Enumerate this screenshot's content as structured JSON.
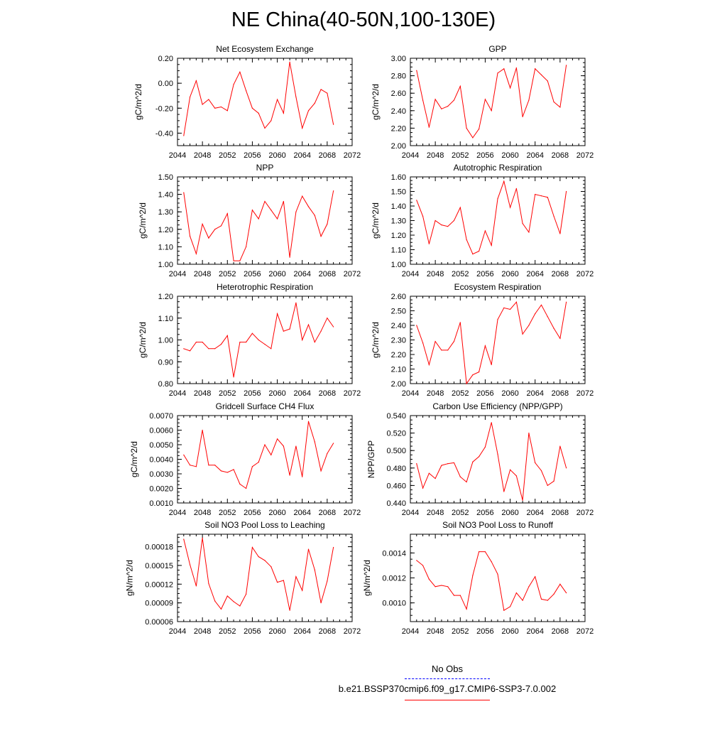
{
  "page_title": "NE China(40-50N,100-130E)",
  "legend": {
    "entries": [
      {
        "label": "No Obs",
        "color": "#0000ff",
        "style": "dashed"
      },
      {
        "label": "b.e21.BSSP370cmip6.f09_g17.CMIP6-SSP3-7.0.002",
        "color": "#ff0000",
        "style": "solid"
      }
    ]
  },
  "chart_data": [
    {
      "type": "line",
      "title": "Net Ecosystem Exchange",
      "ylabel": "gC/m^2/d",
      "xlim": [
        2044,
        2072
      ],
      "xticks": [
        "2044",
        "2048",
        "2052",
        "2056",
        "2060",
        "2064",
        "2068",
        "2072"
      ],
      "ylim": [
        -0.5,
        0.2
      ],
      "yticks": [
        "-0.40",
        "-0.20",
        "0.00",
        "0.20"
      ],
      "series": [
        {
          "color": "#ff0000",
          "x": [
            2045,
            2046,
            2047,
            2048,
            2049,
            2050,
            2051,
            2052,
            2053,
            2054,
            2055,
            2056,
            2057,
            2058,
            2059,
            2060,
            2061,
            2062,
            2063,
            2064,
            2065,
            2066,
            2067,
            2068,
            2069
          ],
          "values": [
            -0.42,
            -0.11,
            0.02,
            -0.17,
            -0.13,
            -0.2,
            -0.19,
            -0.22,
            -0.01,
            0.09,
            -0.06,
            -0.2,
            -0.24,
            -0.36,
            -0.3,
            -0.13,
            -0.24,
            0.17,
            -0.11,
            -0.36,
            -0.22,
            -0.16,
            -0.05,
            -0.08,
            -0.33
          ]
        }
      ]
    },
    {
      "type": "line",
      "title": "GPP",
      "ylabel": "gC/m^2/d",
      "xlim": [
        2044,
        2072
      ],
      "xticks": [
        "2044",
        "2048",
        "2052",
        "2056",
        "2060",
        "2064",
        "2068",
        "2072"
      ],
      "ylim": [
        2.0,
        3.0
      ],
      "yticks": [
        "2.00",
        "2.20",
        "2.40",
        "2.60",
        "2.80",
        "3.00"
      ],
      "series": [
        {
          "color": "#ff0000",
          "x": [
            2045,
            2046,
            2047,
            2048,
            2049,
            2050,
            2051,
            2052,
            2053,
            2054,
            2055,
            2056,
            2057,
            2058,
            2059,
            2060,
            2061,
            2062,
            2063,
            2064,
            2065,
            2066,
            2067,
            2068,
            2069
          ],
          "values": [
            2.86,
            2.52,
            2.21,
            2.53,
            2.42,
            2.45,
            2.52,
            2.68,
            2.2,
            2.09,
            2.19,
            2.53,
            2.4,
            2.83,
            2.88,
            2.66,
            2.89,
            2.33,
            2.52,
            2.88,
            2.81,
            2.74,
            2.5,
            2.44,
            2.92
          ]
        }
      ]
    },
    {
      "type": "line",
      "title": "NPP",
      "ylabel": "gC/m^2/d",
      "xlim": [
        2044,
        2072
      ],
      "xticks": [
        "2044",
        "2048",
        "2052",
        "2056",
        "2060",
        "2064",
        "2068",
        "2072"
      ],
      "ylim": [
        1.0,
        1.5
      ],
      "yticks": [
        "1.00",
        "1.10",
        "1.20",
        "1.30",
        "1.40",
        "1.50"
      ],
      "series": [
        {
          "color": "#ff0000",
          "x": [
            2045,
            2046,
            2047,
            2048,
            2049,
            2050,
            2051,
            2052,
            2053,
            2054,
            2055,
            2056,
            2057,
            2058,
            2059,
            2060,
            2061,
            2062,
            2063,
            2064,
            2065,
            2066,
            2067,
            2068,
            2069
          ],
          "values": [
            1.41,
            1.16,
            1.06,
            1.23,
            1.15,
            1.2,
            1.22,
            1.29,
            1.02,
            1.02,
            1.1,
            1.31,
            1.26,
            1.36,
            1.31,
            1.26,
            1.36,
            1.04,
            1.3,
            1.39,
            1.33,
            1.28,
            1.16,
            1.23,
            1.42
          ]
        }
      ]
    },
    {
      "type": "line",
      "title": "Autotrophic Respiration",
      "ylabel": "gC/m^2/d",
      "xlim": [
        2044,
        2072
      ],
      "xticks": [
        "2044",
        "2048",
        "2052",
        "2056",
        "2060",
        "2064",
        "2068",
        "2072"
      ],
      "ylim": [
        1.0,
        1.6
      ],
      "yticks": [
        "1.00",
        "1.10",
        "1.20",
        "1.30",
        "1.40",
        "1.50",
        "1.60"
      ],
      "series": [
        {
          "color": "#ff0000",
          "x": [
            2045,
            2046,
            2047,
            2048,
            2049,
            2050,
            2051,
            2052,
            2053,
            2054,
            2055,
            2056,
            2057,
            2058,
            2059,
            2060,
            2061,
            2062,
            2063,
            2064,
            2065,
            2066,
            2067,
            2068,
            2069
          ],
          "values": [
            1.44,
            1.33,
            1.14,
            1.3,
            1.27,
            1.26,
            1.3,
            1.39,
            1.17,
            1.07,
            1.09,
            1.23,
            1.13,
            1.45,
            1.57,
            1.39,
            1.52,
            1.28,
            1.22,
            1.48,
            1.47,
            1.46,
            1.33,
            1.21,
            1.5
          ]
        }
      ]
    },
    {
      "type": "line",
      "title": "Heterotrophic Respiration",
      "ylabel": "gC/m^2/d",
      "xlim": [
        2044,
        2072
      ],
      "xticks": [
        "2044",
        "2048",
        "2052",
        "2056",
        "2060",
        "2064",
        "2068",
        "2072"
      ],
      "ylim": [
        0.8,
        1.2
      ],
      "yticks": [
        "0.80",
        "0.90",
        "1.00",
        "1.10",
        "1.20"
      ],
      "series": [
        {
          "color": "#ff0000",
          "x": [
            2045,
            2046,
            2047,
            2048,
            2049,
            2050,
            2051,
            2052,
            2053,
            2054,
            2055,
            2056,
            2057,
            2058,
            2059,
            2060,
            2061,
            2062,
            2063,
            2064,
            2065,
            2066,
            2067,
            2068,
            2069
          ],
          "values": [
            0.96,
            0.95,
            0.99,
            0.99,
            0.96,
            0.96,
            0.98,
            1.02,
            0.83,
            0.99,
            0.99,
            1.03,
            1.0,
            0.98,
            0.96,
            1.12,
            1.04,
            1.05,
            1.17,
            1.0,
            1.07,
            0.99,
            1.04,
            1.1,
            1.06
          ]
        }
      ]
    },
    {
      "type": "line",
      "title": "Ecosystem Respiration",
      "ylabel": "gC/m^2/d",
      "xlim": [
        2044,
        2072
      ],
      "xticks": [
        "2044",
        "2048",
        "2052",
        "2056",
        "2060",
        "2064",
        "2068",
        "2072"
      ],
      "ylim": [
        2.0,
        2.6
      ],
      "yticks": [
        "2.00",
        "2.10",
        "2.20",
        "2.30",
        "2.40",
        "2.50",
        "2.60"
      ],
      "series": [
        {
          "color": "#ff0000",
          "x": [
            2045,
            2046,
            2047,
            2048,
            2049,
            2050,
            2051,
            2052,
            2053,
            2054,
            2055,
            2056,
            2057,
            2058,
            2059,
            2060,
            2061,
            2062,
            2063,
            2064,
            2065,
            2066,
            2067,
            2068,
            2069
          ],
          "values": [
            2.4,
            2.28,
            2.13,
            2.29,
            2.23,
            2.23,
            2.29,
            2.42,
            2.0,
            2.06,
            2.08,
            2.26,
            2.13,
            2.44,
            2.52,
            2.51,
            2.56,
            2.34,
            2.4,
            2.48,
            2.54,
            2.46,
            2.38,
            2.31,
            2.56
          ]
        }
      ]
    },
    {
      "type": "line",
      "title": "Gridcell Surface CH4 Flux",
      "ylabel": "gC/m^2/d",
      "xlim": [
        2044,
        2072
      ],
      "xticks": [
        "2044",
        "2048",
        "2052",
        "2056",
        "2060",
        "2064",
        "2068",
        "2072"
      ],
      "ylim": [
        0.001,
        0.007
      ],
      "yticks": [
        "0.0010",
        "0.0020",
        "0.0030",
        "0.0040",
        "0.0050",
        "0.0060",
        "0.0070"
      ],
      "series": [
        {
          "color": "#ff0000",
          "x": [
            2045,
            2046,
            2047,
            2048,
            2049,
            2050,
            2051,
            2052,
            2053,
            2054,
            2055,
            2056,
            2057,
            2058,
            2059,
            2060,
            2061,
            2062,
            2063,
            2064,
            2065,
            2066,
            2067,
            2068,
            2069
          ],
          "values": [
            0.0043,
            0.0036,
            0.0035,
            0.006,
            0.0036,
            0.0036,
            0.0032,
            0.0031,
            0.0033,
            0.0023,
            0.002,
            0.0035,
            0.0038,
            0.005,
            0.0043,
            0.0054,
            0.0049,
            0.0029,
            0.0049,
            0.0028,
            0.0066,
            0.0052,
            0.0032,
            0.0044,
            0.0051
          ]
        }
      ]
    },
    {
      "type": "line",
      "title": "Carbon Use Efficiency (NPP/GPP)",
      "ylabel": "NPP/GPP",
      "xlim": [
        2044,
        2072
      ],
      "xticks": [
        "2044",
        "2048",
        "2052",
        "2056",
        "2060",
        "2064",
        "2068",
        "2072"
      ],
      "ylim": [
        0.44,
        0.54
      ],
      "yticks": [
        "0.440",
        "0.460",
        "0.480",
        "0.500",
        "0.520",
        "0.540"
      ],
      "series": [
        {
          "color": "#ff0000",
          "x": [
            2045,
            2046,
            2047,
            2048,
            2049,
            2050,
            2051,
            2052,
            2053,
            2054,
            2055,
            2056,
            2057,
            2058,
            2059,
            2060,
            2061,
            2062,
            2063,
            2064,
            2065,
            2066,
            2067,
            2068,
            2069
          ],
          "values": [
            0.485,
            0.457,
            0.474,
            0.468,
            0.483,
            0.485,
            0.486,
            0.47,
            0.464,
            0.487,
            0.493,
            0.504,
            0.532,
            0.496,
            0.453,
            0.478,
            0.471,
            0.443,
            0.52,
            0.486,
            0.477,
            0.46,
            0.465,
            0.505,
            0.48
          ]
        }
      ]
    },
    {
      "type": "line",
      "title": "Soil NO3 Pool Loss to Leaching",
      "ylabel": "gN/m^2/d",
      "xlim": [
        2044,
        2072
      ],
      "xticks": [
        "2044",
        "2048",
        "2052",
        "2056",
        "2060",
        "2064",
        "2068",
        "2072"
      ],
      "ylim": [
        6e-05,
        0.0002
      ],
      "yticks": [
        "0.00006",
        "0.00009",
        "0.00012",
        "0.00015",
        "0.00018"
      ],
      "series": [
        {
          "color": "#ff0000",
          "x": [
            2045,
            2046,
            2047,
            2048,
            2049,
            2050,
            2051,
            2052,
            2053,
            2054,
            2055,
            2056,
            2057,
            2058,
            2059,
            2060,
            2061,
            2062,
            2063,
            2064,
            2065,
            2066,
            2067,
            2068,
            2069
          ],
          "values": [
            0.000192,
            0.000151,
            0.000117,
            0.000194,
            0.000121,
            9.3e-05,
            8e-05,
            0.000101,
            9.2e-05,
            8.5e-05,
            0.000104,
            0.000179,
            0.000164,
            0.000158,
            0.000148,
            0.000123,
            0.000126,
            7.8e-05,
            0.000132,
            0.00011,
            0.000176,
            0.000143,
            9e-05,
            0.000125,
            0.000179
          ]
        }
      ]
    },
    {
      "type": "line",
      "title": "Soil NO3 Pool Loss to Runoff",
      "ylabel": "gN/m^2/d",
      "xlim": [
        2044,
        2072
      ],
      "xticks": [
        "2044",
        "2048",
        "2052",
        "2056",
        "2060",
        "2064",
        "2068",
        "2072"
      ],
      "ylim": [
        0.00085,
        0.00155
      ],
      "yticks": [
        "0.0010",
        "0.0012",
        "0.0014"
      ],
      "series": [
        {
          "color": "#ff0000",
          "x": [
            2045,
            2046,
            2047,
            2048,
            2049,
            2050,
            2051,
            2052,
            2053,
            2054,
            2055,
            2056,
            2057,
            2058,
            2059,
            2060,
            2061,
            2062,
            2063,
            2064,
            2065,
            2066,
            2067,
            2068,
            2069
          ],
          "values": [
            0.00134,
            0.0013,
            0.00119,
            0.00113,
            0.00114,
            0.00113,
            0.00106,
            0.00106,
            0.00095,
            0.00122,
            0.00141,
            0.00141,
            0.00133,
            0.00123,
            0.00094,
            0.00097,
            0.00108,
            0.00102,
            0.00113,
            0.00121,
            0.00103,
            0.00102,
            0.00107,
            0.00115,
            0.00108
          ]
        }
      ]
    }
  ]
}
